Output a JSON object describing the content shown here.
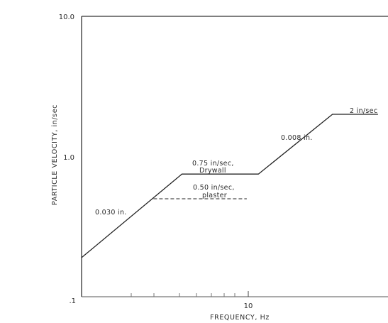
{
  "chart_data": {
    "type": "line",
    "xlabel": "FREQUENCY, Hz",
    "ylabel": "PARTICLE VELOCITY, in/sec",
    "x_scale": "log",
    "y_scale": "log",
    "ylim": [
      0.1,
      10.0
    ],
    "y_tick_labels": [
      ".1",
      "1.0",
      "10.0"
    ],
    "x_tick_labels": [
      "10"
    ],
    "grid": false,
    "legend": "none",
    "series": [
      {
        "name": "0.75 in/sec, Drywall",
        "style": "solid",
        "x": [
          1,
          4,
          11.5,
          32,
          60
        ],
        "y": [
          0.19,
          0.75,
          0.75,
          2.0,
          2.0
        ]
      },
      {
        "name": "0.50 in/sec, plaster",
        "style": "dashed",
        "x": [
          2.7,
          9.8
        ],
        "y": [
          0.5,
          0.5
        ]
      }
    ],
    "annotations": [
      {
        "text": "0.030 in."
      },
      {
        "text": "0.75 in/sec,"
      },
      {
        "text": "Drywall"
      },
      {
        "text": "0.50 in/sec,"
      },
      {
        "text": "plaster"
      },
      {
        "text": "0.008 in."
      },
      {
        "text": "2 in/sec"
      }
    ]
  }
}
